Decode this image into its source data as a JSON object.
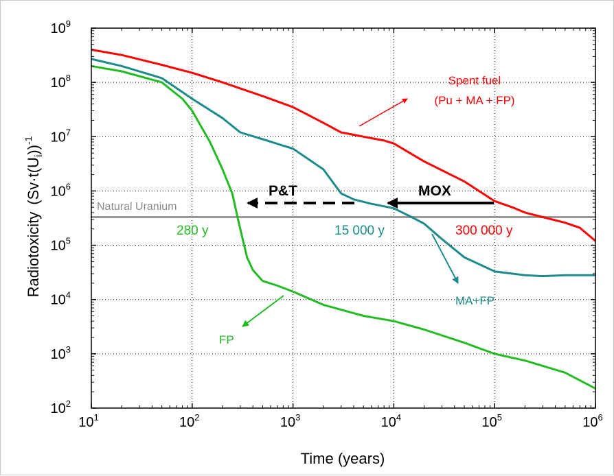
{
  "chart_data": {
    "type": "line",
    "xlabel": "Time (years)",
    "ylabel_main": "Radiotoxicity",
    "ylabel_unit_prefix": "(Sv·t(U",
    "ylabel_unit_sub": "i",
    "ylabel_unit_suffix": "))",
    "ylabel_unit_exp": "-1",
    "xscale": "log",
    "yscale": "log",
    "xlim": [
      10,
      1000000
    ],
    "ylim": [
      100,
      1000000000
    ],
    "x_ticks": [
      {
        "value": 10,
        "base": "10",
        "exp": "1"
      },
      {
        "value": 100,
        "base": "10",
        "exp": "2"
      },
      {
        "value": 1000,
        "base": "10",
        "exp": "3"
      },
      {
        "value": 10000,
        "base": "10",
        "exp": "4"
      },
      {
        "value": 100000,
        "base": "10",
        "exp": "5"
      },
      {
        "value": 1000000,
        "base": "10",
        "exp": "6"
      }
    ],
    "y_ticks": [
      {
        "value": 100,
        "base": "10",
        "exp": "2"
      },
      {
        "value": 1000,
        "base": "10",
        "exp": "3"
      },
      {
        "value": 10000,
        "base": "10",
        "exp": "4"
      },
      {
        "value": 100000,
        "base": "10",
        "exp": "5"
      },
      {
        "value": 1000000,
        "base": "10",
        "exp": "6"
      },
      {
        "value": 10000000,
        "base": "10",
        "exp": "7"
      },
      {
        "value": 100000000,
        "base": "10",
        "exp": "8"
      },
      {
        "value": 1000000000,
        "base": "10",
        "exp": "9"
      }
    ],
    "grid": true,
    "series": [
      {
        "id": "spent",
        "color": "#ff0000",
        "points": [
          [
            10,
            400000000
          ],
          [
            20,
            320000000
          ],
          [
            50,
            210000000
          ],
          [
            100,
            150000000
          ],
          [
            200,
            100000000
          ],
          [
            500,
            56000000
          ],
          [
            1000,
            35000000
          ],
          [
            2000,
            18000000
          ],
          [
            3000,
            12000000
          ],
          [
            5000,
            10000000
          ],
          [
            8000,
            8500000
          ],
          [
            10000,
            7500000
          ],
          [
            20000,
            3500000
          ],
          [
            50000,
            1500000
          ],
          [
            100000,
            650000
          ],
          [
            150000,
            500000
          ],
          [
            200000,
            400000
          ],
          [
            300000,
            330000
          ],
          [
            500000,
            260000
          ],
          [
            700000,
            210000
          ],
          [
            1000000,
            120000
          ]
        ]
      },
      {
        "id": "mafp",
        "color": "#1a8a8a",
        "points": [
          [
            10,
            270000000
          ],
          [
            20,
            200000000
          ],
          [
            50,
            120000000
          ],
          [
            100,
            50000000
          ],
          [
            200,
            22000000
          ],
          [
            300,
            12000000
          ],
          [
            500,
            9000000
          ],
          [
            1000,
            6000000
          ],
          [
            2000,
            2500000
          ],
          [
            3000,
            900000
          ],
          [
            4000,
            700000
          ],
          [
            6000,
            580000
          ],
          [
            10000,
            480000
          ],
          [
            15000,
            330000
          ],
          [
            20000,
            250000
          ],
          [
            30000,
            130000
          ],
          [
            50000,
            60000
          ],
          [
            80000,
            40000
          ],
          [
            100000,
            33000
          ],
          [
            150000,
            30000
          ],
          [
            200000,
            28000
          ],
          [
            300000,
            27000
          ],
          [
            500000,
            28000
          ],
          [
            1000000,
            28000
          ]
        ]
      },
      {
        "id": "fp",
        "color": "#22bb22",
        "points": [
          [
            10,
            200000000
          ],
          [
            20,
            160000000
          ],
          [
            50,
            100000000
          ],
          [
            80,
            50000000
          ],
          [
            100,
            30000000
          ],
          [
            150,
            8000000
          ],
          [
            200,
            2500000
          ],
          [
            250,
            900000
          ],
          [
            280,
            350000
          ],
          [
            300,
            200000
          ],
          [
            350,
            60000
          ],
          [
            400,
            35000
          ],
          [
            500,
            22000
          ],
          [
            700,
            18000
          ],
          [
            1000,
            14000
          ],
          [
            2000,
            8000
          ],
          [
            5000,
            5000
          ],
          [
            10000,
            4000
          ],
          [
            20000,
            2800
          ],
          [
            50000,
            1600
          ],
          [
            100000,
            1000
          ],
          [
            200000,
            750
          ],
          [
            500000,
            450
          ],
          [
            1000000,
            230
          ]
        ]
      }
    ],
    "reference_line": {
      "label": "Natural Uranium",
      "value": 330000,
      "color": "#999999"
    },
    "annotations": {
      "spent_label_line1": "Spent fuel",
      "spent_label_line2": "(Pu + MA + FP)",
      "mafp_label": "MA+FP",
      "fp_label": "FP",
      "pt_label": "P&T",
      "mox_label": "MOX",
      "t_fp": "280 y",
      "t_mafp": "15 000 y",
      "t_spent": "300 000 y"
    }
  }
}
